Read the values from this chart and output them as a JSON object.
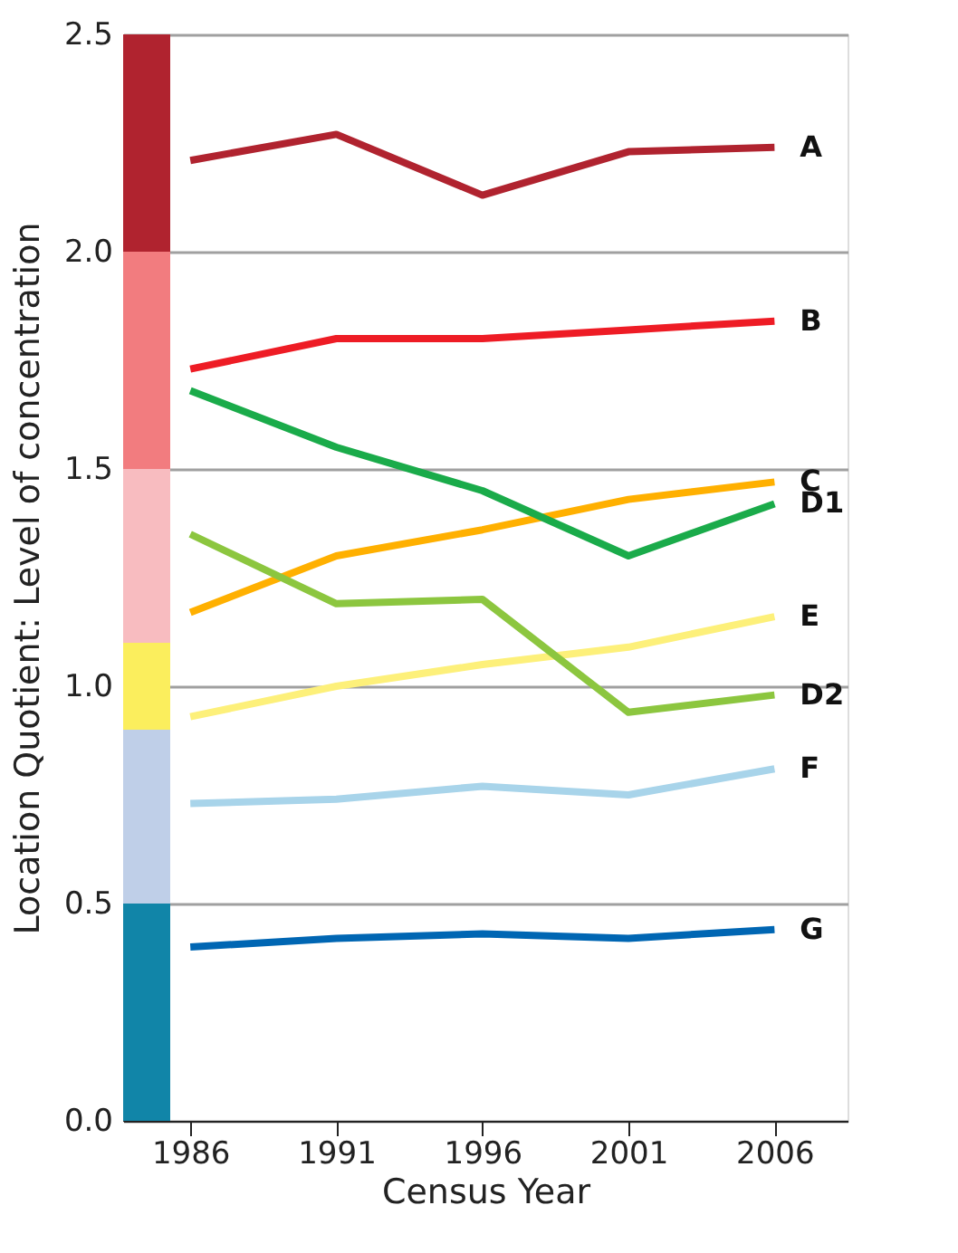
{
  "chart_data": {
    "type": "line",
    "xlabel": "Census Year",
    "ylabel": "Location Quotient: Level of concentration",
    "x": [
      1986,
      1991,
      1996,
      2001,
      2006
    ],
    "xlim": [
      1983.7,
      2008.5
    ],
    "xticks": [
      1986,
      1991,
      1996,
      2001,
      2006
    ],
    "ylim": [
      0,
      2.5
    ],
    "yticks": [
      {
        "value": 0,
        "label": "0.0"
      },
      0.5,
      {
        "value": 1,
        "label": "1.0"
      },
      1.5,
      {
        "value": 2,
        "label": "2.0"
      },
      2.5
    ],
    "grid": "y",
    "line_style": "solid",
    "marker": "none",
    "series": [
      {
        "name": "A",
        "color": "#b0232f",
        "values": [
          2.21,
          2.27,
          2.13,
          2.23,
          2.24
        ]
      },
      {
        "name": "B",
        "color": "#ee1c25",
        "values": [
          1.73,
          1.8,
          1.8,
          1.82,
          1.84
        ]
      },
      {
        "name": "C",
        "color": "#ffb000",
        "values": [
          1.17,
          1.3,
          1.36,
          1.43,
          1.47
        ]
      },
      {
        "name": "D1",
        "color": "#1aab4a",
        "values": [
          1.68,
          1.55,
          1.45,
          1.3,
          1.42
        ]
      },
      {
        "name": "E",
        "color": "#fdf07a",
        "values": [
          0.93,
          1.0,
          1.05,
          1.09,
          1.16
        ]
      },
      {
        "name": "D2",
        "color": "#8cc63f",
        "values": [
          1.35,
          1.19,
          1.2,
          0.94,
          0.98
        ]
      },
      {
        "name": "F",
        "color": "#a8d4ea",
        "values": [
          0.73,
          0.74,
          0.77,
          0.75,
          0.81
        ]
      },
      {
        "name": "G",
        "color": "#0066b3",
        "values": [
          0.4,
          0.42,
          0.43,
          0.42,
          0.44
        ]
      }
    ],
    "bands": [
      {
        "axis": "y",
        "from": 2.0,
        "to": 2.5,
        "color": "#b0232f"
      },
      {
        "axis": "y",
        "from": 1.5,
        "to": 2.0,
        "color": "#f27c7f"
      },
      {
        "axis": "y",
        "from": 1.1,
        "to": 1.5,
        "color": "#f8bcc0"
      },
      {
        "axis": "y",
        "from": 0.9,
        "to": 1.1,
        "color": "#fbee5d"
      },
      {
        "axis": "y",
        "from": 0.5,
        "to": 0.9,
        "color": "#bfcfe8"
      },
      {
        "axis": "y",
        "from": 0.0,
        "to": 0.5,
        "color": "#1185a8"
      }
    ]
  }
}
